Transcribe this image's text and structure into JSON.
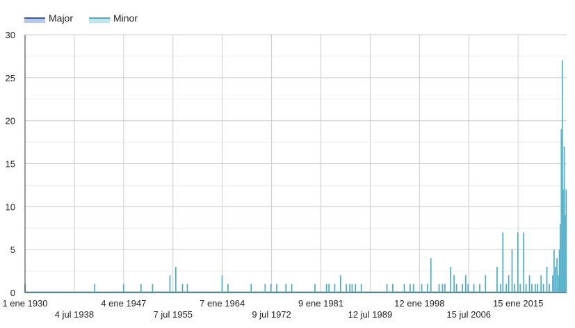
{
  "chart_data": {
    "type": "area",
    "title": "",
    "xlabel": "",
    "ylabel": "",
    "ylim": [
      0,
      30
    ],
    "xlim": [
      "1930-01-01",
      "2023-06-01"
    ],
    "yticks": [
      0,
      5,
      10,
      15,
      20,
      25,
      30
    ],
    "xticks": [
      {
        "date": "1930-01-01",
        "label": "1 ene 1930"
      },
      {
        "date": "1938-07-04",
        "label": "4 jul 1938"
      },
      {
        "date": "1947-01-04",
        "label": "4 ene 1947"
      },
      {
        "date": "1955-07-07",
        "label": "7 jul 1955"
      },
      {
        "date": "1964-01-07",
        "label": "7 ene 1964"
      },
      {
        "date": "1972-07-09",
        "label": "9 jul 1972"
      },
      {
        "date": "1981-01-09",
        "label": "9 ene 1981"
      },
      {
        "date": "1989-07-12",
        "label": "12 jul 1989"
      },
      {
        "date": "1998-01-12",
        "label": "12 ene 1998"
      },
      {
        "date": "2006-07-15",
        "label": "15 jul 2006"
      },
      {
        "date": "2015-01-15",
        "label": "15 ene 2015"
      }
    ],
    "grid": true,
    "legend_position": "top-left",
    "series": [
      {
        "name": "Major",
        "color": "#3b5ea8",
        "fill": "#b4c8ea",
        "points": []
      },
      {
        "name": "Minor",
        "color": "#4bacc6",
        "fill": "#bfe6ee",
        "points": [
          [
            "1930-01-01",
            1
          ],
          [
            "1942-01-01",
            1
          ],
          [
            "1947-01-01",
            1
          ],
          [
            "1950-01-01",
            1
          ],
          [
            "1952-01-01",
            1
          ],
          [
            "1955-01-01",
            2
          ],
          [
            "1956-01-01",
            3
          ],
          [
            "1957-03-01",
            1
          ],
          [
            "1958-01-01",
            1
          ],
          [
            "1964-01-01",
            2
          ],
          [
            "1965-01-01",
            1
          ],
          [
            "1969-01-01",
            1
          ],
          [
            "1971-06-01",
            1
          ],
          [
            "1972-06-01",
            1
          ],
          [
            "1973-06-01",
            1
          ],
          [
            "1975-01-01",
            1
          ],
          [
            "1976-01-01",
            1
          ],
          [
            "1980-01-01",
            1
          ],
          [
            "1982-01-01",
            1
          ],
          [
            "1982-06-01",
            1
          ],
          [
            "1983-06-01",
            1
          ],
          [
            "1984-06-01",
            2
          ],
          [
            "1985-06-01",
            1
          ],
          [
            "1986-01-01",
            1
          ],
          [
            "1986-06-01",
            1
          ],
          [
            "1987-01-01",
            1
          ],
          [
            "1988-01-01",
            1
          ],
          [
            "1992-06-01",
            1
          ],
          [
            "1993-06-01",
            1
          ],
          [
            "1995-06-01",
            1
          ],
          [
            "1996-06-01",
            1
          ],
          [
            "1997-01-01",
            1
          ],
          [
            "1998-06-01",
            1
          ],
          [
            "1999-06-01",
            1
          ],
          [
            "2000-01-01",
            4
          ],
          [
            "2001-06-01",
            1
          ],
          [
            "2002-01-01",
            1
          ],
          [
            "2002-06-01",
            1
          ],
          [
            "2003-06-01",
            3
          ],
          [
            "2004-01-01",
            2
          ],
          [
            "2004-06-01",
            1
          ],
          [
            "2005-06-01",
            1
          ],
          [
            "2006-01-01",
            2
          ],
          [
            "2006-06-01",
            1
          ],
          [
            "2007-06-01",
            1
          ],
          [
            "2008-06-01",
            1
          ],
          [
            "2009-06-01",
            2
          ],
          [
            "2011-06-01",
            3
          ],
          [
            "2012-01-01",
            1
          ],
          [
            "2012-06-01",
            7
          ],
          [
            "2013-01-01",
            1
          ],
          [
            "2013-06-01",
            2
          ],
          [
            "2014-01-01",
            5
          ],
          [
            "2014-06-01",
            1
          ],
          [
            "2015-01-01",
            7
          ],
          [
            "2015-06-01",
            1
          ],
          [
            "2016-01-01",
            7
          ],
          [
            "2016-06-01",
            1
          ],
          [
            "2017-01-01",
            2
          ],
          [
            "2017-06-01",
            1
          ],
          [
            "2018-01-01",
            1
          ],
          [
            "2018-06-01",
            1
          ],
          [
            "2019-01-01",
            2
          ],
          [
            "2019-06-01",
            1
          ],
          [
            "2020-01-01",
            3
          ],
          [
            "2020-06-01",
            1
          ],
          [
            "2021-01-01",
            2
          ],
          [
            "2021-04-01",
            5
          ],
          [
            "2021-07-01",
            3
          ],
          [
            "2021-10-01",
            4
          ],
          [
            "2022-01-01",
            2
          ],
          [
            "2022-03-01",
            5
          ],
          [
            "2022-05-01",
            8
          ],
          [
            "2022-07-01",
            19
          ],
          [
            "2022-09-01",
            27
          ],
          [
            "2022-11-01",
            12
          ],
          [
            "2023-01-01",
            17
          ],
          [
            "2023-03-01",
            9
          ],
          [
            "2023-05-01",
            12
          ]
        ]
      }
    ]
  }
}
